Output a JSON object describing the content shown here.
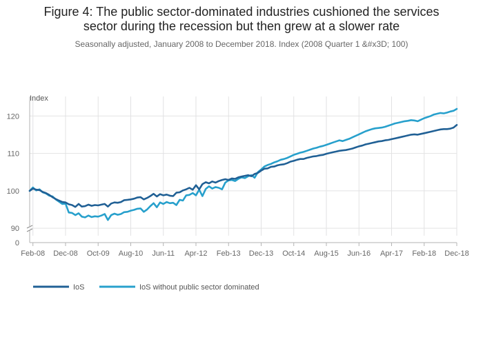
{
  "chart_data": {
    "type": "line",
    "title_line1": "Figure 4: The public sector-dominated industries cushioned the services",
    "title_line2": "sector during the recession but then grew at a slower rate",
    "subtitle": "Seasonally adjusted, January 2008 to December 2018. Index (2008 Quarter 1 &#x3D; 100)",
    "ylabel": "Index",
    "ylim": [
      88,
      123
    ],
    "y_ticks": [
      90,
      100,
      110,
      120
    ],
    "y_break_label": "0",
    "x_ticks": [
      "Feb-08",
      "Dec-08",
      "Oct-09",
      "Aug-10",
      "Jun-11",
      "Apr-12",
      "Feb-13",
      "Dec-13",
      "Oct-14",
      "Aug-15",
      "Jun-16",
      "Apr-17",
      "Feb-18",
      "Dec-18"
    ],
    "grid": true,
    "legend_position": "bottom-left",
    "colors": {
      "IoS": "#206095",
      "IoS without public sector dominated": "#27a0cc"
    },
    "series": [
      {
        "name": "IoS",
        "points": [
          [
            "Jan-08",
            100.0
          ],
          [
            "Feb-08",
            100.6
          ],
          [
            "Mar-08",
            100.3
          ],
          [
            "Apr-08",
            100.2
          ],
          [
            "May-08",
            99.7
          ],
          [
            "Jun-08",
            99.4
          ],
          [
            "Jul-08",
            98.9
          ],
          [
            "Aug-08",
            98.3
          ],
          [
            "Sep-08",
            97.8
          ],
          [
            "Oct-08",
            97.4
          ],
          [
            "Nov-08",
            97.0
          ],
          [
            "Dec-08",
            96.9
          ],
          [
            "Jan-09",
            96.4
          ],
          [
            "Feb-09",
            96.2
          ],
          [
            "Mar-09",
            95.7
          ],
          [
            "Apr-09",
            96.5
          ],
          [
            "May-09",
            95.8
          ],
          [
            "Jun-09",
            95.9
          ],
          [
            "Jul-09",
            96.3
          ],
          [
            "Aug-09",
            96.0
          ],
          [
            "Sep-09",
            96.2
          ],
          [
            "Oct-09",
            96.1
          ],
          [
            "Nov-09",
            96.3
          ],
          [
            "Dec-09",
            96.5
          ],
          [
            "Jan-10",
            95.8
          ],
          [
            "Feb-10",
            96.6
          ],
          [
            "Mar-10",
            96.9
          ],
          [
            "Apr-10",
            96.8
          ],
          [
            "May-10",
            97.0
          ],
          [
            "Jun-10",
            97.5
          ],
          [
            "Jul-10",
            97.6
          ],
          [
            "Aug-10",
            97.7
          ],
          [
            "Sep-10",
            97.9
          ],
          [
            "Oct-10",
            98.2
          ],
          [
            "Nov-10",
            98.3
          ],
          [
            "Dec-10",
            97.7
          ],
          [
            "Jan-11",
            98.1
          ],
          [
            "Feb-11",
            98.6
          ],
          [
            "Mar-11",
            99.2
          ],
          [
            "Apr-11",
            98.5
          ],
          [
            "May-11",
            99.1
          ],
          [
            "Jun-11",
            98.8
          ],
          [
            "Jul-11",
            99.0
          ],
          [
            "Aug-11",
            98.7
          ],
          [
            "Sep-11",
            98.6
          ],
          [
            "Oct-11",
            99.5
          ],
          [
            "Nov-11",
            99.6
          ],
          [
            "Dec-11",
            100.1
          ],
          [
            "Jan-12",
            100.4
          ],
          [
            "Feb-12",
            100.8
          ],
          [
            "Mar-12",
            100.3
          ],
          [
            "Apr-12",
            101.5
          ],
          [
            "May-12",
            100.4
          ],
          [
            "Jun-12",
            101.8
          ],
          [
            "Jul-12",
            102.3
          ],
          [
            "Aug-12",
            102.0
          ],
          [
            "Sep-12",
            102.5
          ],
          [
            "Oct-12",
            102.2
          ],
          [
            "Nov-12",
            102.6
          ],
          [
            "Dec-12",
            102.9
          ],
          [
            "Jan-13",
            103.1
          ],
          [
            "Feb-13",
            102.9
          ],
          [
            "Mar-13",
            103.3
          ],
          [
            "Apr-13",
            103.2
          ],
          [
            "May-13",
            103.6
          ],
          [
            "Jun-13",
            103.8
          ],
          [
            "Jul-13",
            104.0
          ],
          [
            "Aug-13",
            104.2
          ],
          [
            "Sep-13",
            103.9
          ],
          [
            "Oct-13",
            104.5
          ],
          [
            "Nov-13",
            104.8
          ],
          [
            "Dec-13",
            105.4
          ],
          [
            "Jan-14",
            105.9
          ],
          [
            "Feb-14",
            106.0
          ],
          [
            "Mar-14",
            106.4
          ],
          [
            "Apr-14",
            106.5
          ],
          [
            "May-14",
            106.8
          ],
          [
            "Jun-14",
            107.0
          ],
          [
            "Jul-14",
            107.1
          ],
          [
            "Aug-14",
            107.4
          ],
          [
            "Sep-14",
            107.8
          ],
          [
            "Oct-14",
            108.0
          ],
          [
            "Nov-14",
            108.3
          ],
          [
            "Dec-14",
            108.5
          ],
          [
            "Jan-15",
            108.5
          ],
          [
            "Feb-15",
            108.8
          ],
          [
            "Mar-15",
            109.0
          ],
          [
            "Apr-15",
            109.2
          ],
          [
            "May-15",
            109.3
          ],
          [
            "Jun-15",
            109.5
          ],
          [
            "Jul-15",
            109.6
          ],
          [
            "Aug-15",
            109.9
          ],
          [
            "Sep-15",
            110.1
          ],
          [
            "Oct-15",
            110.3
          ],
          [
            "Nov-15",
            110.5
          ],
          [
            "Dec-15",
            110.7
          ],
          [
            "Jan-16",
            110.8
          ],
          [
            "Feb-16",
            110.9
          ],
          [
            "Mar-16",
            111.1
          ],
          [
            "Apr-16",
            111.3
          ],
          [
            "May-16",
            111.6
          ],
          [
            "Jun-16",
            111.9
          ],
          [
            "Jul-16",
            112.1
          ],
          [
            "Aug-16",
            112.4
          ],
          [
            "Sep-16",
            112.6
          ],
          [
            "Oct-16",
            112.8
          ],
          [
            "Nov-16",
            113.0
          ],
          [
            "Dec-16",
            113.2
          ],
          [
            "Jan-17",
            113.3
          ],
          [
            "Feb-17",
            113.5
          ],
          [
            "Mar-17",
            113.6
          ],
          [
            "Apr-17",
            113.8
          ],
          [
            "May-17",
            114.0
          ],
          [
            "Jun-17",
            114.2
          ],
          [
            "Jul-17",
            114.4
          ],
          [
            "Aug-17",
            114.6
          ],
          [
            "Sep-17",
            114.8
          ],
          [
            "Oct-17",
            115.0
          ],
          [
            "Nov-17",
            115.1
          ],
          [
            "Dec-17",
            115.0
          ],
          [
            "Jan-18",
            115.2
          ],
          [
            "Feb-18",
            115.4
          ],
          [
            "Mar-18",
            115.6
          ],
          [
            "Apr-18",
            115.8
          ],
          [
            "May-18",
            116.0
          ],
          [
            "Jun-18",
            116.2
          ],
          [
            "Jul-18",
            116.4
          ],
          [
            "Aug-18",
            116.5
          ],
          [
            "Sep-18",
            116.5
          ],
          [
            "Oct-18",
            116.6
          ],
          [
            "Nov-18",
            116.9
          ],
          [
            "Dec-18",
            117.6
          ]
        ]
      },
      {
        "name": "IoS without public sector dominated",
        "points": [
          [
            "Jan-08",
            100.0
          ],
          [
            "Feb-08",
            100.9
          ],
          [
            "Mar-08",
            100.1
          ],
          [
            "Apr-08",
            100.4
          ],
          [
            "May-08",
            99.6
          ],
          [
            "Jun-08",
            99.3
          ],
          [
            "Jul-08",
            98.7
          ],
          [
            "Aug-08",
            98.5
          ],
          [
            "Sep-08",
            97.7
          ],
          [
            "Oct-08",
            97.1
          ],
          [
            "Nov-08",
            96.5
          ],
          [
            "Dec-08",
            96.6
          ],
          [
            "Jan-09",
            94.2
          ],
          [
            "Feb-09",
            94.1
          ],
          [
            "Mar-09",
            93.5
          ],
          [
            "Apr-09",
            94.0
          ],
          [
            "May-09",
            93.1
          ],
          [
            "Jun-09",
            92.9
          ],
          [
            "Jul-09",
            93.4
          ],
          [
            "Aug-09",
            93.0
          ],
          [
            "Sep-09",
            93.2
          ],
          [
            "Oct-09",
            93.1
          ],
          [
            "Nov-09",
            93.4
          ],
          [
            "Dec-09",
            93.8
          ],
          [
            "Jan-10",
            92.2
          ],
          [
            "Feb-10",
            93.5
          ],
          [
            "Mar-10",
            93.9
          ],
          [
            "Apr-10",
            93.6
          ],
          [
            "May-10",
            93.8
          ],
          [
            "Jun-10",
            94.3
          ],
          [
            "Jul-10",
            94.4
          ],
          [
            "Aug-10",
            94.7
          ],
          [
            "Sep-10",
            94.9
          ],
          [
            "Oct-10",
            95.2
          ],
          [
            "Nov-10",
            95.3
          ],
          [
            "Dec-10",
            94.4
          ],
          [
            "Jan-11",
            95.0
          ],
          [
            "Feb-11",
            95.9
          ],
          [
            "Mar-11",
            96.7
          ],
          [
            "Apr-11",
            95.6
          ],
          [
            "May-11",
            96.9
          ],
          [
            "Jun-11",
            96.5
          ],
          [
            "Jul-11",
            97.0
          ],
          [
            "Aug-11",
            96.7
          ],
          [
            "Sep-11",
            96.8
          ],
          [
            "Oct-11",
            96.2
          ],
          [
            "Nov-11",
            97.6
          ],
          [
            "Dec-11",
            97.4
          ],
          [
            "Jan-12",
            98.8
          ],
          [
            "Feb-12",
            98.9
          ],
          [
            "Mar-12",
            99.4
          ],
          [
            "Apr-12",
            98.8
          ],
          [
            "May-12",
            100.3
          ],
          [
            "Jun-12",
            98.6
          ],
          [
            "Jul-12",
            100.5
          ],
          [
            "Aug-12",
            101.2
          ],
          [
            "Sep-12",
            100.6
          ],
          [
            "Oct-12",
            101.0
          ],
          [
            "Nov-12",
            100.8
          ],
          [
            "Dec-12",
            100.4
          ],
          [
            "Jan-13",
            102.2
          ],
          [
            "Feb-13",
            102.8
          ],
          [
            "Mar-13",
            102.9
          ],
          [
            "Apr-13",
            102.6
          ],
          [
            "May-13",
            103.2
          ],
          [
            "Jun-13",
            103.6
          ],
          [
            "Jul-13",
            103.4
          ],
          [
            "Aug-13",
            103.9
          ],
          [
            "Sep-13",
            104.2
          ],
          [
            "Oct-13",
            103.5
          ],
          [
            "Nov-13",
            105.0
          ],
          [
            "Dec-13",
            105.7
          ],
          [
            "Jan-14",
            106.5
          ],
          [
            "Feb-14",
            106.9
          ],
          [
            "Mar-14",
            107.2
          ],
          [
            "Apr-14",
            107.6
          ],
          [
            "May-14",
            107.9
          ],
          [
            "Jun-14",
            108.3
          ],
          [
            "Jul-14",
            108.5
          ],
          [
            "Aug-14",
            108.8
          ],
          [
            "Sep-14",
            109.2
          ],
          [
            "Oct-14",
            109.6
          ],
          [
            "Nov-14",
            109.9
          ],
          [
            "Dec-14",
            110.2
          ],
          [
            "Jan-15",
            110.4
          ],
          [
            "Feb-15",
            110.7
          ],
          [
            "Mar-15",
            111.0
          ],
          [
            "Apr-15",
            111.3
          ],
          [
            "May-15",
            111.5
          ],
          [
            "Jun-15",
            111.8
          ],
          [
            "Jul-15",
            112.0
          ],
          [
            "Aug-15",
            112.3
          ],
          [
            "Sep-15",
            112.6
          ],
          [
            "Oct-15",
            112.9
          ],
          [
            "Nov-15",
            113.2
          ],
          [
            "Dec-15",
            113.5
          ],
          [
            "Jan-16",
            113.3
          ],
          [
            "Feb-16",
            113.6
          ],
          [
            "Mar-16",
            113.9
          ],
          [
            "Apr-16",
            114.3
          ],
          [
            "May-16",
            114.7
          ],
          [
            "Jun-16",
            115.1
          ],
          [
            "Jul-16",
            115.5
          ],
          [
            "Aug-16",
            115.9
          ],
          [
            "Sep-16",
            116.2
          ],
          [
            "Oct-16",
            116.5
          ],
          [
            "Nov-16",
            116.7
          ],
          [
            "Dec-16",
            116.8
          ],
          [
            "Jan-17",
            116.9
          ],
          [
            "Feb-17",
            117.1
          ],
          [
            "Mar-17",
            117.4
          ],
          [
            "Apr-17",
            117.7
          ],
          [
            "May-17",
            118.0
          ],
          [
            "Jun-17",
            118.2
          ],
          [
            "Jul-17",
            118.4
          ],
          [
            "Aug-17",
            118.6
          ],
          [
            "Sep-17",
            118.7
          ],
          [
            "Oct-17",
            118.9
          ],
          [
            "Nov-17",
            118.8
          ],
          [
            "Dec-17",
            118.6
          ],
          [
            "Jan-18",
            119.0
          ],
          [
            "Feb-18",
            119.4
          ],
          [
            "Mar-18",
            119.7
          ],
          [
            "Apr-18",
            120.0
          ],
          [
            "May-18",
            120.4
          ],
          [
            "Jun-18",
            120.6
          ],
          [
            "Jul-18",
            120.8
          ],
          [
            "Aug-18",
            120.7
          ],
          [
            "Sep-18",
            120.9
          ],
          [
            "Oct-18",
            121.2
          ],
          [
            "Nov-18",
            121.4
          ],
          [
            "Dec-18",
            121.9
          ]
        ]
      }
    ]
  }
}
